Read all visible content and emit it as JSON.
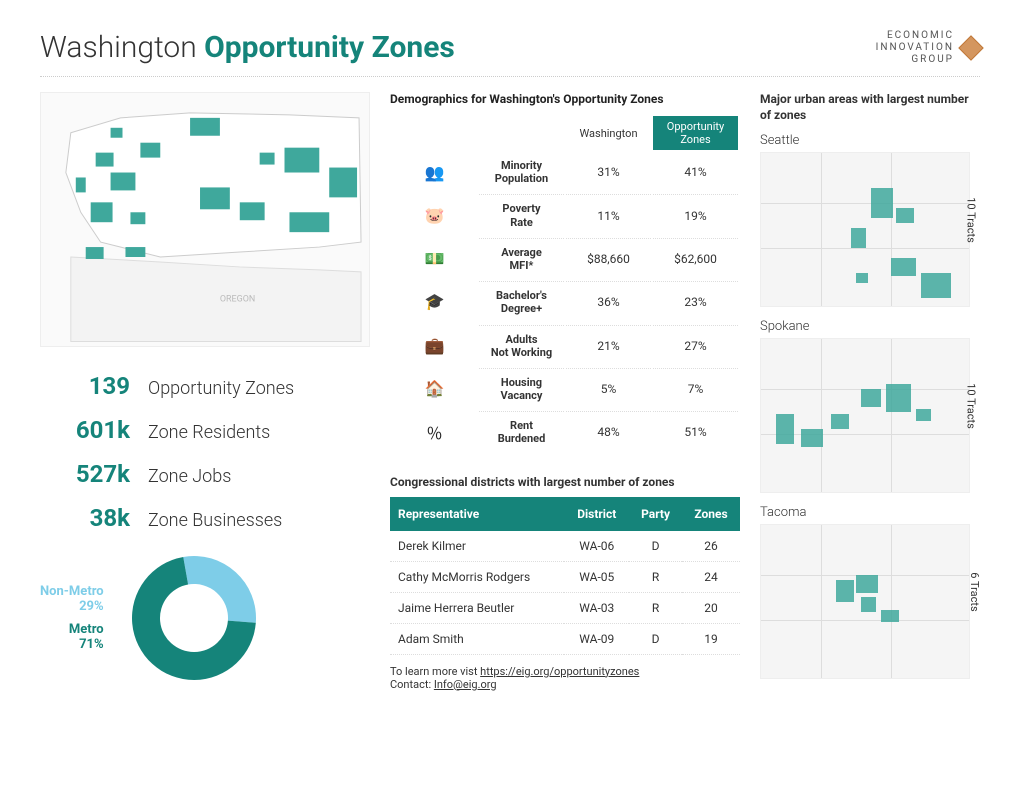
{
  "title": {
    "prefix": "Washington ",
    "strong": "Opportunity Zones"
  },
  "logo": {
    "line1": "ECONOMIC",
    "line2": "INNOVATION",
    "line3": "GROUP"
  },
  "stats": [
    {
      "value": "139",
      "label": "Opportunity Zones"
    },
    {
      "value": "601k",
      "label": "Zone Residents"
    },
    {
      "value": "527k",
      "label": "Zone Jobs"
    },
    {
      "value": "38k",
      "label": "Zone Businesses"
    }
  ],
  "donut": {
    "nonmetro": {
      "label": "Non-Metro",
      "pct": "29%",
      "value": 29,
      "color": "#7ecde8"
    },
    "metro": {
      "label": "Metro",
      "pct": "71%",
      "value": 71,
      "color": "#15847a"
    },
    "start_angle_deg": -10
  },
  "demographics": {
    "heading": "Demographics for Washington's Opportunity Zones",
    "col_state": "Washington",
    "col_oz": "Opportunity Zones",
    "rows": [
      {
        "icon": "👥",
        "label": "Minority Population",
        "state": "31%",
        "oz": "41%"
      },
      {
        "icon": "🐷",
        "label": "Poverty Rate",
        "state": "11%",
        "oz": "19%"
      },
      {
        "icon": "💵",
        "label": "Average MFI*",
        "state": "$88,660",
        "oz": "$62,600"
      },
      {
        "icon": "🎓",
        "label": "Bachelor's Degree+",
        "state": "36%",
        "oz": "23%"
      },
      {
        "icon": "💼",
        "label": "Adults Not Working",
        "state": "21%",
        "oz": "27%"
      },
      {
        "icon": "🏠",
        "label": "Housing Vacancy",
        "state": "5%",
        "oz": "7%"
      },
      {
        "icon": "％",
        "label": "Rent Burdened",
        "state": "48%",
        "oz": "51%"
      }
    ]
  },
  "congress": {
    "heading": "Congressional districts with largest number of zones",
    "columns": [
      "Representative",
      "District",
      "Party",
      "Zones"
    ],
    "rows": [
      {
        "rep": "Derek Kilmer",
        "district": "WA-06",
        "party": "D",
        "zones": "26"
      },
      {
        "rep": "Cathy McMorris Rodgers",
        "district": "WA-05",
        "party": "R",
        "zones": "24"
      },
      {
        "rep": "Jaime Herrera Beutler",
        "district": "WA-03",
        "party": "R",
        "zones": "20"
      },
      {
        "rep": "Adam Smith",
        "district": "WA-09",
        "party": "D",
        "zones": "19"
      }
    ]
  },
  "footer": {
    "learn_prefix": "To learn more vist ",
    "learn_url": "https://eig.org/opportunityzones",
    "contact_prefix": "Contact: ",
    "contact_email": "Info@eig.org"
  },
  "urban": {
    "heading": "Major urban areas with largest number of zones",
    "areas": [
      {
        "name": "Seattle",
        "tracts": "10 Tracts"
      },
      {
        "name": "Spokane",
        "tracts": "10 Tracts"
      },
      {
        "name": "Tacoma",
        "tracts": "6 Tracts"
      }
    ]
  },
  "colors": {
    "teal": "#15847a",
    "teal_light": "#3fa89c",
    "sky": "#7ecde8",
    "map_bg": "#f5f5f5"
  }
}
